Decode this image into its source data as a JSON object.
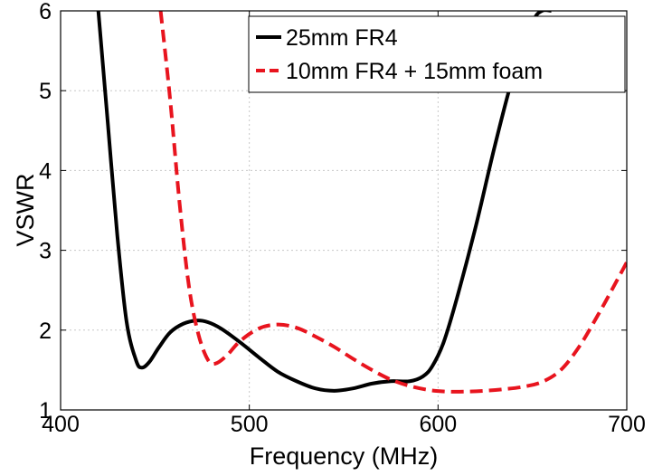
{
  "chart_data": {
    "type": "line",
    "xlabel": "Frequency (MHz)",
    "ylabel": "VSWR",
    "xlim": [
      400,
      700
    ],
    "ylim": [
      1,
      6
    ],
    "xticks": [
      400,
      500,
      600,
      700
    ],
    "yticks": [
      1,
      2,
      3,
      4,
      5,
      6
    ],
    "grid": true,
    "legend_position": "top-right",
    "series": [
      {
        "name": "25mm FR4",
        "color": "#000000",
        "style": "solid",
        "x": [
          420,
          425,
          430,
          435,
          440,
          443,
          447,
          452,
          458,
          465,
          472,
          478,
          485,
          495,
          505,
          515,
          525,
          535,
          545,
          555,
          565,
          575,
          585,
          592,
          597,
          603,
          610,
          620,
          630,
          640,
          650,
          655,
          660
        ],
        "y": [
          6.0,
          4.6,
          3.2,
          2.1,
          1.62,
          1.53,
          1.6,
          1.78,
          1.97,
          2.08,
          2.12,
          2.1,
          2.02,
          1.85,
          1.66,
          1.48,
          1.36,
          1.27,
          1.24,
          1.27,
          1.33,
          1.36,
          1.36,
          1.42,
          1.55,
          1.85,
          2.4,
          3.3,
          4.3,
          5.2,
          5.85,
          6.0,
          6.0
        ]
      },
      {
        "name": "10mm FR4 + 15mm foam",
        "color": "#e8141e",
        "style": "dashed",
        "x": [
          453,
          458,
          463,
          468,
          473,
          478,
          482,
          488,
          495,
          505,
          515,
          525,
          535,
          545,
          555,
          565,
          575,
          585,
          595,
          605,
          615,
          625,
          635,
          645,
          655,
          665,
          675,
          685,
          692,
          700
        ],
        "y": [
          6.0,
          4.9,
          3.6,
          2.55,
          1.95,
          1.63,
          1.58,
          1.68,
          1.86,
          2.02,
          2.07,
          2.03,
          1.92,
          1.79,
          1.64,
          1.5,
          1.38,
          1.3,
          1.25,
          1.23,
          1.23,
          1.24,
          1.26,
          1.29,
          1.35,
          1.5,
          1.8,
          2.2,
          2.5,
          2.85
        ]
      }
    ]
  }
}
